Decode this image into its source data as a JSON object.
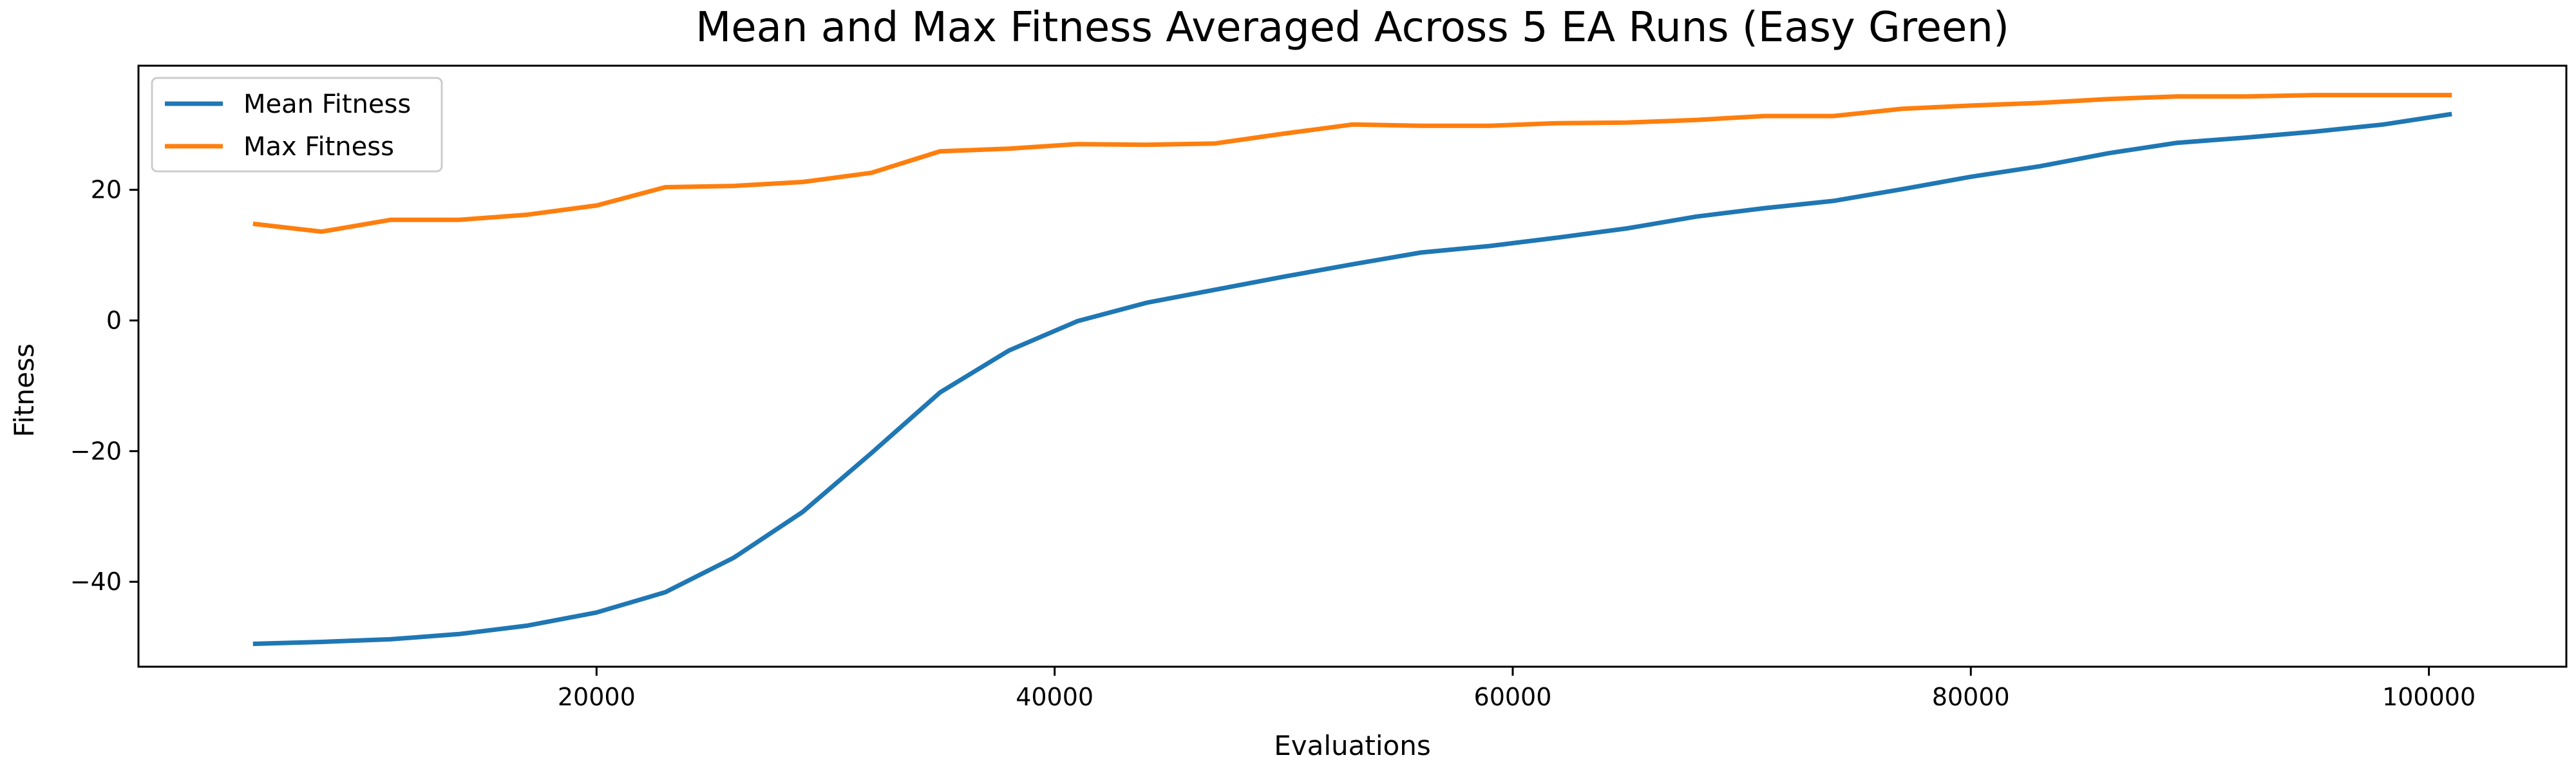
{
  "chart_data": {
    "type": "line",
    "title": "Mean and Max Fitness Averaged Across 5 EA Runs (Easy Green)",
    "xlabel": "Evaluations",
    "ylabel": "Fitness",
    "xlim": [
      0,
      106000
    ],
    "ylim": [
      -53,
      39
    ],
    "xticks": [
      20000,
      40000,
      60000,
      80000,
      100000
    ],
    "xtick_labels": [
      "20000",
      "40000",
      "60000",
      "80000",
      "100000"
    ],
    "yticks": [
      -40,
      -20,
      0,
      20
    ],
    "ytick_labels": [
      "−40",
      "−20",
      "0",
      "20"
    ],
    "grid": false,
    "legend_position": "upper-left",
    "x": [
      5000,
      8000,
      11000,
      14000,
      17000,
      20000,
      23000,
      26000,
      29000,
      32000,
      35000,
      38000,
      41000,
      44000,
      47000,
      50000,
      53000,
      56000,
      59000,
      62000,
      65000,
      68000,
      71000,
      74000,
      77000,
      80000,
      83000,
      86000,
      89000,
      92000,
      95000,
      98000,
      101000
    ],
    "series": [
      {
        "name": "Mean Fitness",
        "color": "#1f77b4",
        "values": [
          -49.5,
          -49.2,
          -48.8,
          -48.0,
          -46.7,
          -44.7,
          -41.6,
          -36.3,
          -29.3,
          -20.3,
          -11.0,
          -4.6,
          -0.1,
          2.7,
          4.7,
          6.7,
          8.6,
          10.4,
          11.4,
          12.7,
          14.1,
          15.9,
          17.2,
          18.3,
          20.1,
          22.0,
          23.6,
          25.6,
          27.2,
          28.0,
          28.9,
          30.0,
          31.6
        ]
      },
      {
        "name": "Max Fitness",
        "color": "#ff7f0e",
        "values": [
          14.8,
          13.6,
          15.4,
          15.4,
          16.2,
          17.6,
          20.4,
          20.6,
          21.2,
          22.6,
          25.9,
          26.3,
          27.0,
          26.9,
          27.1,
          28.6,
          30.0,
          29.8,
          29.8,
          30.2,
          30.3,
          30.7,
          31.3,
          31.3,
          32.4,
          32.9,
          33.3,
          33.9,
          34.3,
          34.3,
          34.5,
          34.5,
          34.5
        ]
      }
    ]
  }
}
